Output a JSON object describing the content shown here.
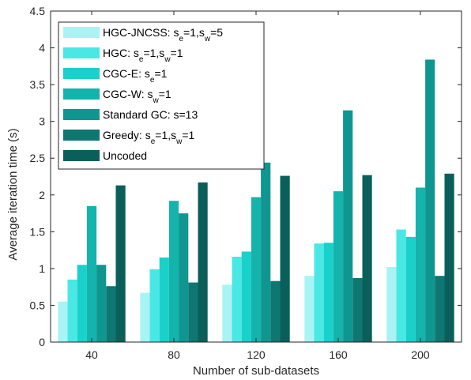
{
  "chart_data": {
    "type": "bar",
    "title": "",
    "xlabel": "Number of sub-datasets",
    "ylabel": "Average iteration time (s)",
    "categories": [
      "40",
      "80",
      "120",
      "160",
      "200"
    ],
    "ylim": [
      0,
      4.5
    ],
    "yticks": [
      "0",
      "0.5",
      "1",
      "1.5",
      "2",
      "2.5",
      "3",
      "3.5",
      "4",
      "4.5"
    ],
    "grid": false,
    "legend_position": "top-left",
    "series": [
      {
        "name": "HGC-JNCSS: s_e=1,s_w=5",
        "legend": {
          "pre": "HGC-JNCSS: s",
          "sub1": "e",
          "mid": "=1,s",
          "sub2": "w",
          "post": "=5"
        },
        "color": "#a8f4f4",
        "values": [
          0.55,
          0.67,
          0.78,
          0.9,
          1.02
        ]
      },
      {
        "name": "HGC: s_e=1,s_w=1",
        "legend": {
          "pre": "HGC: s",
          "sub1": "e",
          "mid": "=1,s",
          "sub2": "w",
          "post": "=1"
        },
        "color": "#4ae8e4",
        "values": [
          0.85,
          0.99,
          1.16,
          1.34,
          1.53
        ]
      },
      {
        "name": "CGC-E: s_e=1",
        "legend": {
          "pre": "CGC-E: s",
          "sub1": "e",
          "mid": "=1",
          "sub2": "",
          "post": ""
        },
        "color": "#19d1ca",
        "values": [
          1.05,
          1.15,
          1.23,
          1.35,
          1.43
        ]
      },
      {
        "name": "CGC-W: s_w=1",
        "legend": {
          "pre": "CGC-W: s",
          "sub1": "w",
          "mid": "=1",
          "sub2": "",
          "post": ""
        },
        "color": "#14b3ac",
        "values": [
          1.85,
          1.92,
          1.97,
          2.05,
          2.1
        ]
      },
      {
        "name": "Standard GC: s=13",
        "legend": {
          "pre": "Standard GC: s=13",
          "sub1": "",
          "mid": "",
          "sub2": "",
          "post": ""
        },
        "color": "#109690",
        "values": [
          1.05,
          1.75,
          2.44,
          3.15,
          3.84
        ]
      },
      {
        "name": "Greedy: s_e=1,s_w=1",
        "legend": {
          "pre": "Greedy: s",
          "sub1": "e",
          "mid": "=1,s",
          "sub2": "w",
          "post": "=1"
        },
        "color": "#0e7772",
        "values": [
          0.76,
          0.81,
          0.83,
          0.87,
          0.9
        ]
      },
      {
        "name": "Uncoded",
        "legend": {
          "pre": "Uncoded",
          "sub1": "",
          "mid": "",
          "sub2": "",
          "post": ""
        },
        "color": "#0a5f5b",
        "values": [
          2.13,
          2.17,
          2.26,
          2.27,
          2.29
        ]
      }
    ]
  }
}
